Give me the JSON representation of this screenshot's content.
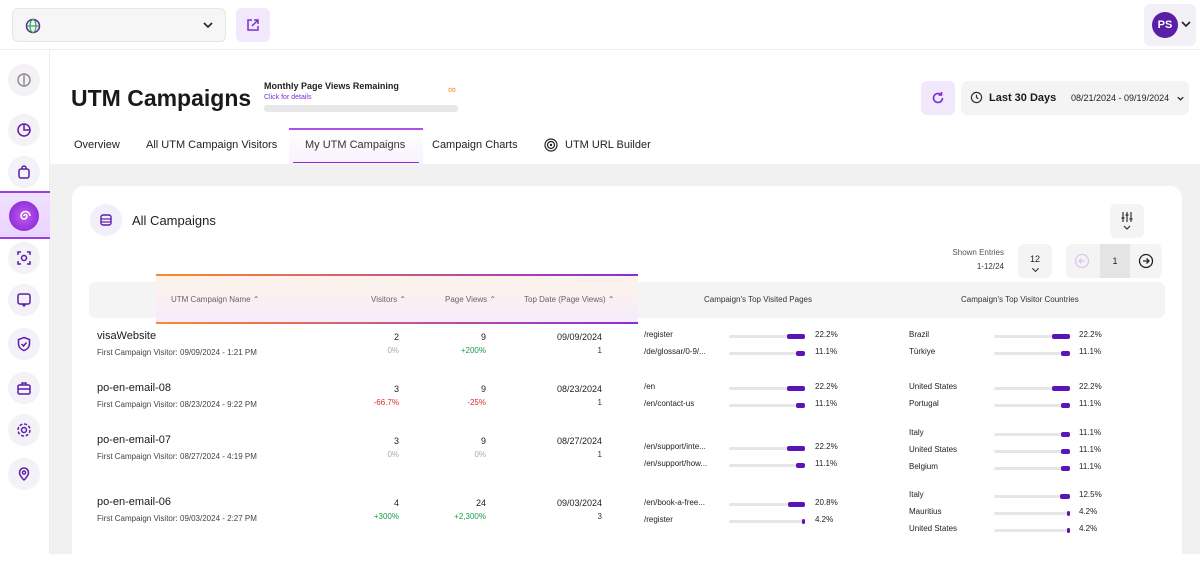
{
  "header": {
    "user_initials": "PS"
  },
  "page": {
    "title": "UTM Campaigns"
  },
  "quota": {
    "title": "Monthly Page Views Remaining",
    "link": "Click for details",
    "value": "∞",
    "accent": "#f08c2a"
  },
  "date_range": {
    "preset": "Last 30 Days",
    "dates": "08/21/2024 - 09/19/2024"
  },
  "tabs": [
    {
      "label": "Overview"
    },
    {
      "label": "All UTM Campaign Visitors"
    },
    {
      "label": "My UTM Campaigns",
      "active": true
    },
    {
      "label": "Campaign Charts"
    },
    {
      "label": "UTM URL Builder"
    }
  ],
  "card": {
    "title": "All Campaigns"
  },
  "pagination": {
    "shown_label": "Shown Entries",
    "shown_range": "1-12/24",
    "entries": "12",
    "page": "1"
  },
  "columns": {
    "name": "UTM Campaign Name",
    "visitors": "Visitors",
    "page_views": "Page Views",
    "top_date": "Top Date (Page Views)",
    "top_pages": "Campaign's Top Visited Pages",
    "top_countries": "Campaign's Top Visitor Countries"
  },
  "rows": [
    {
      "name": "visaWebsite",
      "first": "First Campaign Visitor: 09/09/2024 - 1:21 PM",
      "visitors": "2",
      "visitors_change": "0%",
      "visitors_trend": "zero",
      "page_views": "9",
      "page_views_change": "+200%",
      "page_views_trend": "pos",
      "top_date": "09/09/2024",
      "top_date_count": "1",
      "pages": [
        {
          "url": "/register",
          "pct": "22.2%",
          "value": 22.2
        },
        {
          "url": "/de/glossar/0-9/...",
          "pct": "11.1%",
          "value": 11.1
        }
      ],
      "countries": [
        {
          "name": "Brazil",
          "pct": "22.2%",
          "value": 22.2
        },
        {
          "name": "Türkiye",
          "pct": "11.1%",
          "value": 11.1
        }
      ]
    },
    {
      "name": "po-en-email-08",
      "first": "First Campaign Visitor: 08/23/2024 - 9:22 PM",
      "visitors": "3",
      "visitors_change": "-66.7%",
      "visitors_trend": "neg",
      "page_views": "9",
      "page_views_change": "-25%",
      "page_views_trend": "neg",
      "top_date": "08/23/2024",
      "top_date_count": "1",
      "pages": [
        {
          "url": "/en",
          "pct": "22.2%",
          "value": 22.2
        },
        {
          "url": "/en/contact-us",
          "pct": "11.1%",
          "value": 11.1
        }
      ],
      "countries": [
        {
          "name": "United States",
          "pct": "22.2%",
          "value": 22.2
        },
        {
          "name": "Portugal",
          "pct": "11.1%",
          "value": 11.1
        }
      ]
    },
    {
      "name": "po-en-email-07",
      "first": "First Campaign Visitor: 08/27/2024 - 4:19 PM",
      "visitors": "3",
      "visitors_change": "0%",
      "visitors_trend": "zero",
      "page_views": "9",
      "page_views_change": "0%",
      "page_views_trend": "zero",
      "top_date": "08/27/2024",
      "top_date_count": "1",
      "pages": [
        {
          "url": "/en/support/inte...",
          "pct": "22.2%",
          "value": 22.2
        },
        {
          "url": "/en/support/how...",
          "pct": "11.1%",
          "value": 11.1
        }
      ],
      "countries": [
        {
          "name": "Italy",
          "pct": "11.1%",
          "value": 11.1
        },
        {
          "name": "United States",
          "pct": "11.1%",
          "value": 11.1
        },
        {
          "name": "Belgium",
          "pct": "11.1%",
          "value": 11.1
        }
      ]
    },
    {
      "name": "po-en-email-06",
      "first": "First Campaign Visitor: 09/03/2024 - 2:27 PM",
      "visitors": "4",
      "visitors_change": "+300%",
      "visitors_trend": "pos",
      "page_views": "24",
      "page_views_change": "+2,300%",
      "page_views_trend": "pos",
      "top_date": "09/03/2024",
      "top_date_count": "3",
      "pages": [
        {
          "url": "/en/book-a-free...",
          "pct": "20.8%",
          "value": 20.8
        },
        {
          "url": "/register",
          "pct": "4.2%",
          "value": 4.2
        }
      ],
      "countries": [
        {
          "name": "Italy",
          "pct": "12.5%",
          "value": 12.5
        },
        {
          "name": "Mauritius",
          "pct": "4.2%",
          "value": 4.2
        },
        {
          "name": "United States",
          "pct": "4.2%",
          "value": 4.2
        }
      ]
    }
  ],
  "colors": {
    "accent": "#5b1ea8",
    "bar": "#5a14b8",
    "positive": "#1a9e4a",
    "negative": "#d9302a"
  }
}
